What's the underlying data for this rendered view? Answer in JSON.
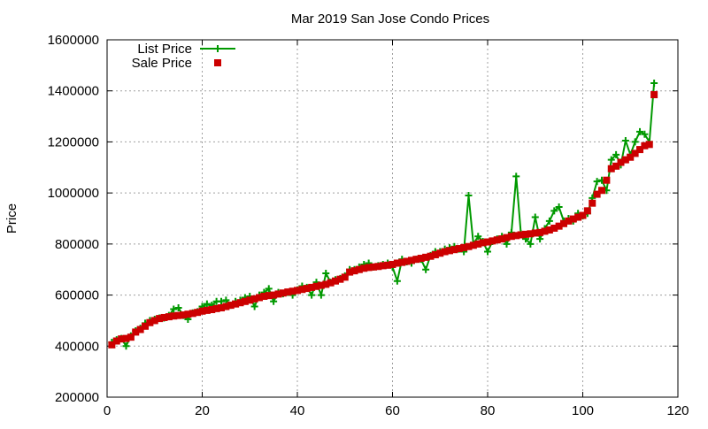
{
  "chart_data": {
    "type": "line",
    "title": "Mar 2019 San Jose Condo Prices",
    "xlabel": "",
    "ylabel": "Price",
    "xlim": [
      0,
      120
    ],
    "ylim": [
      200000,
      1600000
    ],
    "xticks": [
      0,
      20,
      40,
      60,
      80,
      100,
      120
    ],
    "yticks": [
      200000,
      400000,
      600000,
      800000,
      1000000,
      1200000,
      1400000,
      1600000
    ],
    "grid": true,
    "legend_position": "top-left",
    "series": [
      {
        "name": "List Price",
        "color": "#009900",
        "marker": "plus",
        "style": "line+points",
        "x": [
          1,
          2,
          3,
          4,
          5,
          6,
          7,
          8,
          9,
          10,
          11,
          12,
          13,
          14,
          15,
          16,
          17,
          18,
          19,
          20,
          21,
          22,
          23,
          24,
          25,
          26,
          27,
          28,
          29,
          30,
          31,
          32,
          33,
          34,
          35,
          36,
          37,
          38,
          39,
          40,
          41,
          42,
          43,
          44,
          45,
          46,
          47,
          48,
          49,
          50,
          51,
          52,
          53,
          54,
          55,
          56,
          57,
          58,
          59,
          60,
          61,
          62,
          63,
          64,
          65,
          66,
          67,
          68,
          69,
          70,
          71,
          72,
          73,
          74,
          75,
          76,
          77,
          78,
          79,
          80,
          81,
          82,
          83,
          84,
          85,
          86,
          87,
          88,
          89,
          90,
          91,
          92,
          93,
          94,
          95,
          96,
          97,
          98,
          99,
          100,
          101,
          102,
          103,
          104,
          105,
          106,
          107,
          108,
          109,
          110,
          111,
          112,
          113,
          114,
          115
        ],
        "y": [
          415000,
          425000,
          430000,
          400000,
          440000,
          460000,
          470000,
          490000,
          500000,
          505000,
          510000,
          510000,
          520000,
          545000,
          550000,
          520000,
          505000,
          530000,
          535000,
          555000,
          565000,
          560000,
          575000,
          575000,
          580000,
          560000,
          575000,
          580000,
          590000,
          595000,
          555000,
          600000,
          610000,
          625000,
          575000,
          610000,
          605000,
          610000,
          600000,
          620000,
          635000,
          630000,
          600000,
          650000,
          600000,
          685000,
          650000,
          660000,
          665000,
          675000,
          700000,
          700000,
          710000,
          720000,
          725000,
          710000,
          715000,
          720000,
          725000,
          710000,
          655000,
          740000,
          730000,
          725000,
          740000,
          740000,
          700000,
          755000,
          770000,
          770000,
          780000,
          785000,
          790000,
          780000,
          770000,
          990000,
          800000,
          830000,
          810000,
          770000,
          810000,
          820000,
          830000,
          800000,
          845000,
          1065000,
          840000,
          820000,
          800000,
          905000,
          820000,
          860000,
          890000,
          930000,
          945000,
          890000,
          900000,
          890000,
          920000,
          910000,
          920000,
          980000,
          1045000,
          1050000,
          1010000,
          1130000,
          1150000,
          1110000,
          1205000,
          1150000,
          1200000,
          1240000,
          1230000,
          1200000,
          1430000
        ]
      },
      {
        "name": "Sale Price",
        "color": "#cc0000",
        "marker": "square",
        "style": "points",
        "x": [
          1,
          2,
          3,
          4,
          5,
          6,
          7,
          8,
          9,
          10,
          11,
          12,
          13,
          14,
          15,
          16,
          17,
          18,
          19,
          20,
          21,
          22,
          23,
          24,
          25,
          26,
          27,
          28,
          29,
          30,
          31,
          32,
          33,
          34,
          35,
          36,
          37,
          38,
          39,
          40,
          41,
          42,
          43,
          44,
          45,
          46,
          47,
          48,
          49,
          50,
          51,
          52,
          53,
          54,
          55,
          56,
          57,
          58,
          59,
          60,
          61,
          62,
          63,
          64,
          65,
          66,
          67,
          68,
          69,
          70,
          71,
          72,
          73,
          74,
          75,
          76,
          77,
          78,
          79,
          80,
          81,
          82,
          83,
          84,
          85,
          86,
          87,
          88,
          89,
          90,
          91,
          92,
          93,
          94,
          95,
          96,
          97,
          98,
          99,
          100,
          101,
          102,
          103,
          104,
          105,
          106,
          107,
          108,
          109,
          110,
          111,
          112,
          113,
          114,
          115
        ],
        "y": [
          405000,
          420000,
          428000,
          430000,
          435000,
          455000,
          465000,
          478000,
          492000,
          500000,
          508000,
          512000,
          515000,
          518000,
          520000,
          522000,
          525000,
          528000,
          532000,
          537000,
          540000,
          543000,
          547000,
          550000,
          555000,
          560000,
          565000,
          570000,
          575000,
          580000,
          585000,
          590000,
          595000,
          598000,
          600000,
          604000,
          608000,
          612000,
          615000,
          618000,
          622000,
          626000,
          630000,
          634000,
          638000,
          642000,
          648000,
          655000,
          662000,
          670000,
          690000,
          695000,
          700000,
          705000,
          708000,
          710000,
          712000,
          715000,
          717000,
          720000,
          725000,
          728000,
          732000,
          736000,
          740000,
          744000,
          748000,
          752000,
          758000,
          764000,
          770000,
          774000,
          778000,
          782000,
          786000,
          790000,
          795000,
          800000,
          805000,
          808000,
          812000,
          816000,
          820000,
          825000,
          830000,
          833000,
          836000,
          838000,
          840000,
          843000,
          845000,
          850000,
          855000,
          862000,
          870000,
          880000,
          890000,
          898000,
          905000,
          912000,
          930000,
          960000,
          995000,
          1010000,
          1050000,
          1095000,
          1105000,
          1120000,
          1130000,
          1140000,
          1155000,
          1170000,
          1185000,
          1190000,
          1385000
        ]
      }
    ]
  }
}
